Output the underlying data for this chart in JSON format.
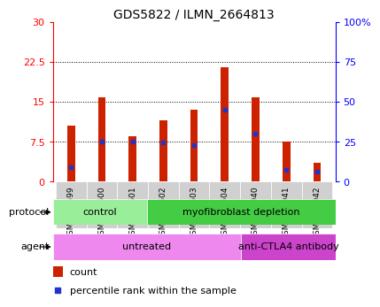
{
  "title": "GDS5822 / ILMN_2664813",
  "samples": [
    "GSM1276599",
    "GSM1276600",
    "GSM1276601",
    "GSM1276602",
    "GSM1276603",
    "GSM1276604",
    "GSM1303940",
    "GSM1303941",
    "GSM1303942"
  ],
  "counts": [
    10.5,
    15.8,
    8.5,
    11.5,
    13.5,
    21.5,
    15.8,
    7.5,
    3.5
  ],
  "percentile_ranks": [
    9.0,
    25.0,
    25.0,
    24.5,
    23.0,
    45.0,
    30.0,
    7.5,
    6.0
  ],
  "left_ylim": [
    0,
    30
  ],
  "right_ylim": [
    0,
    100
  ],
  "left_yticks": [
    0,
    7.5,
    15,
    22.5,
    30
  ],
  "right_yticks": [
    0,
    25,
    50,
    75,
    100
  ],
  "left_yticklabels": [
    "0",
    "7.5",
    "15",
    "22.5",
    "30"
  ],
  "right_yticklabels": [
    "0",
    "25",
    "50",
    "75",
    "100%"
  ],
  "bar_color": "#cc2200",
  "dot_color": "#2233cc",
  "protocol_groups": [
    {
      "label": "control",
      "start": 0,
      "end": 3,
      "color": "#99ee99"
    },
    {
      "label": "myofibroblast depletion",
      "start": 3,
      "end": 9,
      "color": "#44cc44"
    }
  ],
  "agent_groups": [
    {
      "label": "untreated",
      "start": 0,
      "end": 6,
      "color": "#ee88ee"
    },
    {
      "label": "anti-CTLA4 antibody",
      "start": 6,
      "end": 9,
      "color": "#cc44cc"
    }
  ],
  "protocol_label": "protocol",
  "agent_label": "agent",
  "legend_count_label": "count",
  "legend_pct_label": "percentile rank within the sample",
  "bar_width": 0.25
}
